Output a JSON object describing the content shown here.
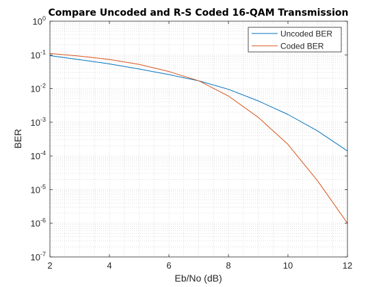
{
  "chart_data": {
    "type": "line",
    "title": "Compare Uncoded and R-S Coded 16-QAM Transmission",
    "xlabel": "Eb/No (dB)",
    "ylabel": "BER",
    "xlim": [
      2,
      12
    ],
    "ylim": [
      1e-07,
      1
    ],
    "yscale": "log",
    "grid": "on (major and minor, dotted)",
    "legend_position": "top-right",
    "x_ticks": [
      "2",
      "4",
      "6",
      "8",
      "10",
      "12"
    ],
    "y_ticks": [
      {
        "base": "10",
        "exp": "0"
      },
      {
        "base": "10",
        "exp": "-1"
      },
      {
        "base": "10",
        "exp": "-2"
      },
      {
        "base": "10",
        "exp": "-3"
      },
      {
        "base": "10",
        "exp": "-4"
      },
      {
        "base": "10",
        "exp": "-5"
      },
      {
        "base": "10",
        "exp": "-6"
      },
      {
        "base": "10",
        "exp": "-7"
      }
    ],
    "x": [
      2,
      3,
      4,
      5,
      6,
      7,
      8,
      9,
      10,
      11,
      12
    ],
    "series": [
      {
        "name": "Uncoded BER",
        "color": "#0072BD",
        "values": [
          0.095,
          0.072,
          0.054,
          0.038,
          0.026,
          0.017,
          0.0095,
          0.0043,
          0.0017,
          0.00055,
          0.00014
        ]
      },
      {
        "name": "Coded BER",
        "color": "#D95319",
        "values": [
          0.11,
          0.092,
          0.073,
          0.052,
          0.032,
          0.017,
          0.006,
          0.0014,
          0.00022,
          1.8e-05,
          1e-06
        ]
      }
    ]
  }
}
